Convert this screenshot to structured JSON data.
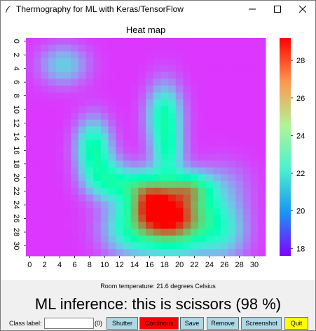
{
  "window": {
    "title": "Thermography for ML with Keras/TensorFlow",
    "controls": [
      "minimize-icon",
      "maximize-icon",
      "close-icon"
    ]
  },
  "chart_data": {
    "type": "heatmap",
    "title": "Heat map",
    "x_ticks": [
      "0",
      "2",
      "4",
      "6",
      "8",
      "10",
      "12",
      "14",
      "16",
      "18",
      "20",
      "22",
      "24",
      "26",
      "28",
      "30"
    ],
    "y_ticks": [
      "0",
      "2",
      "4",
      "6",
      "8",
      "10",
      "12",
      "14",
      "16",
      "18",
      "20",
      "22",
      "24",
      "26",
      "28",
      "30"
    ],
    "grid_size": [
      32,
      32
    ],
    "colorbar": {
      "ticks": [
        "18",
        "20",
        "22",
        "24",
        "26",
        "28"
      ],
      "range": [
        17.6,
        29.2
      ],
      "colormap": "rainbow"
    },
    "baseline": 18.4,
    "hotspots": [
      {
        "cx": 19.0,
        "cy": 26.0,
        "sx": 3.8,
        "sy": 3.2,
        "amp": 10.5
      },
      {
        "cx": 16.0,
        "cy": 23.0,
        "sx": 2.2,
        "sy": 2.5,
        "amp": 5.0
      },
      {
        "cx": 21.5,
        "cy": 21.5,
        "sx": 2.0,
        "sy": 1.6,
        "amp": 4.5
      },
      {
        "cx": 18.0,
        "cy": 11.0,
        "sx": 1.6,
        "sy": 3.2,
        "amp": 5.0
      },
      {
        "cx": 18.5,
        "cy": 16.5,
        "sx": 1.4,
        "sy": 2.5,
        "amp": 3.5
      },
      {
        "cx": 8.5,
        "cy": 15.5,
        "sx": 1.6,
        "sy": 2.8,
        "amp": 5.0
      },
      {
        "cx": 10.0,
        "cy": 20.0,
        "sx": 2.0,
        "sy": 2.2,
        "amp": 3.5
      },
      {
        "cx": 13.0,
        "cy": 21.0,
        "sx": 2.5,
        "sy": 1.5,
        "amp": 2.5
      },
      {
        "cx": 4.5,
        "cy": 3.5,
        "sx": 2.2,
        "sy": 2.0,
        "amp": 2.7
      },
      {
        "cx": 13.0,
        "cy": 28.0,
        "sx": 2.5,
        "sy": 2.5,
        "amp": 2.5
      },
      {
        "cx": 26.0,
        "cy": 28.0,
        "sx": 2.2,
        "sy": 3.0,
        "amp": 2.5
      },
      {
        "cx": 26.0,
        "cy": 21.0,
        "sx": 2.5,
        "sy": 2.5,
        "amp": 1.2
      }
    ]
  },
  "status": {
    "room_temperature": "Room temperature: 21.6 degrees Celsius",
    "inference": "ML inference: this is scissors (98 %)"
  },
  "controls": {
    "class_label": "Class label:",
    "class_input_value": "",
    "count": "(0)",
    "buttons": {
      "shutter": "Shutter",
      "continuous": "Continous",
      "save": "Save",
      "remove": "Remove",
      "screenshot": "Screenshot",
      "quit": "Quit"
    }
  },
  "colors": {
    "shutter_bg": "#add8e6",
    "continuous_bg": "#ff0000",
    "save_bg": "#add8e6",
    "remove_bg": "#add8e6",
    "screenshot_bg": "#add8e6",
    "quit_bg": "#ffff00"
  }
}
